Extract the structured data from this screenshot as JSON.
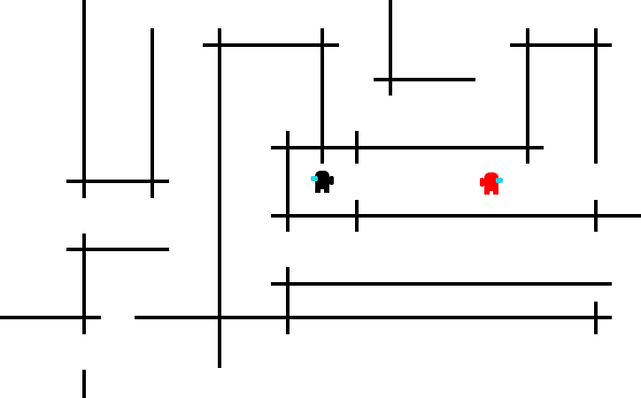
{
  "game": {
    "background_color": "#ffffff",
    "wall_color": "#000000",
    "players": [
      {
        "name": "black-crewmate",
        "body_color": "#000000",
        "visor_color": "#2ad4e0",
        "facing": "left"
      },
      {
        "name": "red-crewmate",
        "body_color": "#ff0000",
        "visor_color": "#2ad4e0",
        "facing": "right"
      }
    ]
  }
}
